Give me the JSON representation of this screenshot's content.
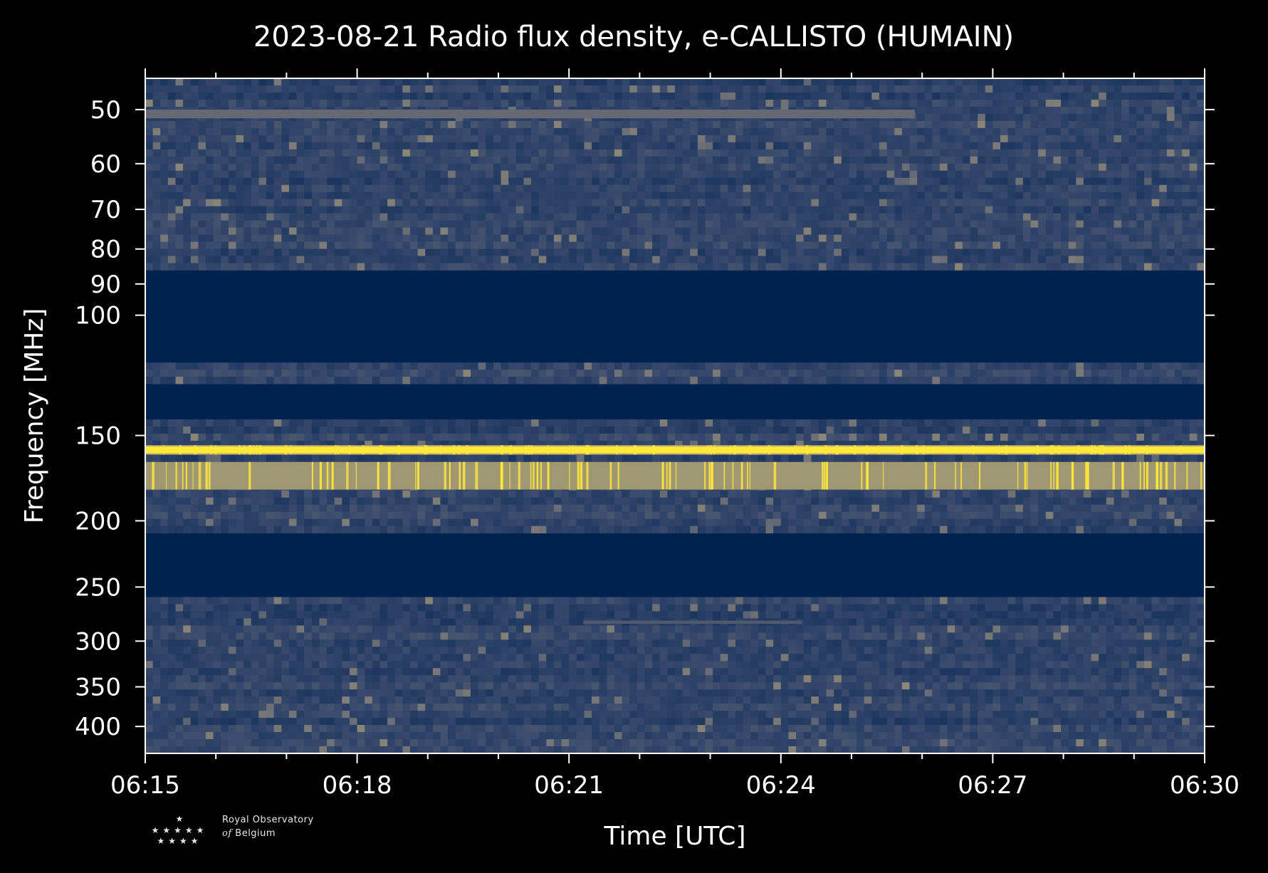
{
  "chart_data": {
    "type": "heatmap",
    "title": "2023-08-21 Radio flux density, e-CALLISTO (HUMAIN)",
    "xlabel": "Time [UTC]",
    "ylabel": "Frequency [MHz]",
    "x_ticks": [
      "06:15",
      "06:18",
      "06:21",
      "06:24",
      "06:27",
      "06:30"
    ],
    "x_range_minutes": [
      0,
      15
    ],
    "y_scale": "log",
    "y_range_mhz": [
      45,
      438
    ],
    "y_ticks": [
      50,
      60,
      70,
      80,
      90,
      100,
      150,
      200,
      250,
      300,
      350,
      400
    ],
    "colormap": "cividis",
    "colors": {
      "low": "#00224e",
      "mid": "#7c7b78",
      "high": "#fee838",
      "background": "#000000",
      "axes": "#ffffff"
    },
    "empty_bands_mhz": [
      [
        85,
        118
      ],
      [
        126,
        142
      ],
      [
        207,
        258
      ]
    ],
    "bright_bands_mhz": [
      {
        "range": [
          155,
          160
        ],
        "level": 1.0
      },
      {
        "range": [
          164,
          180
        ],
        "level": 0.85
      },
      {
        "range": [
          50,
          51.5
        ],
        "level": 0.55,
        "until_minute": 10.9
      },
      {
        "range": [
          280,
          283
        ],
        "level": 0.45,
        "from_minute": 6.2,
        "until_minute": 9.3
      }
    ]
  },
  "logo": {
    "line1": "Royal Observatory",
    "line2_of": "of",
    "line2_rest": " Belgium"
  }
}
